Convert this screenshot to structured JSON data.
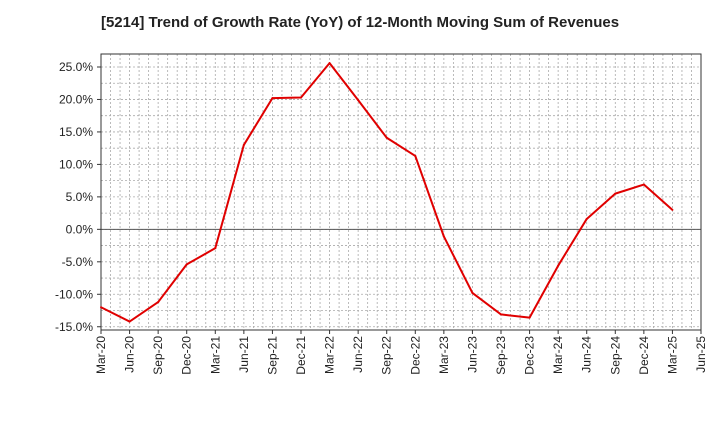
{
  "chart_data": {
    "type": "line",
    "title": "[5214]  Trend of Growth Rate (YoY) of 12-Month Moving Sum of Revenues",
    "xlabel": "",
    "ylabel": "",
    "x_tick_labels": [
      "Mar-20",
      "Jun-20",
      "Sep-20",
      "Dec-20",
      "Mar-21",
      "Jun-21",
      "Sep-21",
      "Dec-21",
      "Mar-22",
      "Jun-22",
      "Sep-22",
      "Dec-22",
      "Mar-23",
      "Jun-23",
      "Sep-23",
      "Dec-23",
      "Mar-24",
      "Jun-24",
      "Sep-24",
      "Dec-24",
      "Mar-25",
      "Jun-25"
    ],
    "y_ticks": [
      25,
      20,
      15,
      10,
      5,
      0,
      -5,
      -10,
      -15
    ],
    "y_tick_labels": [
      "25.0%",
      "20.0%",
      "15.0%",
      "10.0%",
      "5.0%",
      "0.0%",
      "-5.0%",
      "-10.0%",
      "-15.0%"
    ],
    "ylim": [
      -15.5,
      27
    ],
    "grid": true,
    "series": [
      {
        "color": "#e00000",
        "x": [
          "Mar-20",
          "Jun-20",
          "Sep-20",
          "Dec-20",
          "Mar-21",
          "Jun-21",
          "Sep-21",
          "Dec-21",
          "Mar-22",
          "Jun-22",
          "Sep-22",
          "Dec-22",
          "Mar-23",
          "Jun-23",
          "Sep-23",
          "Dec-23",
          "Mar-24",
          "Jun-24",
          "Sep-24",
          "Dec-24",
          "Mar-25"
        ],
        "values": [
          -12.0,
          -14.2,
          -11.2,
          -5.4,
          -2.9,
          13.0,
          20.2,
          20.3,
          25.6,
          19.9,
          14.1,
          11.3,
          -1.1,
          -9.8,
          -13.1,
          -13.6,
          -5.6,
          1.6,
          5.5,
          6.9,
          3.0
        ]
      }
    ]
  }
}
